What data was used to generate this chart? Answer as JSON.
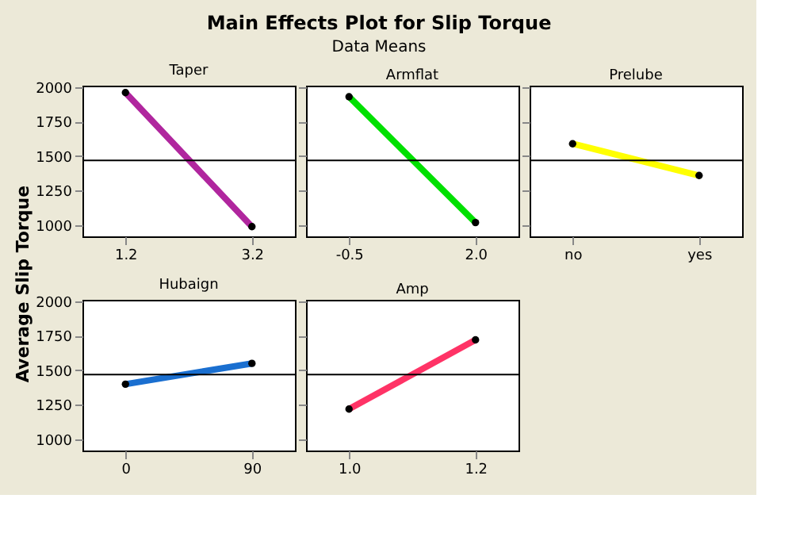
{
  "chart_data": [
    {
      "type": "other",
      "title": "Main Effects Plot for Slip Torque",
      "subtitle": "Data Means",
      "ylabel": "Average Slip Torque"
    },
    {
      "type": "line",
      "title": "Taper",
      "categories": [
        "1.2",
        "3.2"
      ],
      "values": [
        1960,
        990
      ],
      "color": "#b0269e",
      "marker": "circle",
      "ylim": [
        920,
        2010
      ],
      "yticks": [
        1000,
        1250,
        1500,
        1750,
        2000
      ],
      "ref_lines": [
        {
          "axis": "y",
          "value": 1470
        }
      ]
    },
    {
      "type": "line",
      "title": "Armflat",
      "categories": [
        "-0.5",
        "2.0"
      ],
      "values": [
        1930,
        1020
      ],
      "color": "#00e000",
      "marker": "circle",
      "ylim": [
        920,
        2010
      ],
      "yticks": [
        1000,
        1250,
        1500,
        1750,
        2000
      ],
      "ref_lines": [
        {
          "axis": "y",
          "value": 1470
        }
      ],
      "tick_labels": "x"
    },
    {
      "type": "line",
      "title": "Prelube",
      "categories": [
        "no",
        "yes"
      ],
      "values": [
        1590,
        1360
      ],
      "color": "#ffff00",
      "marker": "circle",
      "ylim": [
        920,
        2010
      ],
      "yticks": [
        1000,
        1250,
        1500,
        1750,
        2000
      ],
      "ref_lines": [
        {
          "axis": "y",
          "value": 1470
        }
      ],
      "tick_labels": "x"
    },
    {
      "type": "line",
      "title": "Hubaign",
      "categories": [
        "0",
        "90"
      ],
      "values": [
        1400,
        1550
      ],
      "color": "#1a6fd0",
      "marker": "circle",
      "ylim": [
        920,
        2010
      ],
      "yticks": [
        1000,
        1250,
        1500,
        1750,
        2000
      ],
      "ref_lines": [
        {
          "axis": "y",
          "value": 1470
        }
      ]
    },
    {
      "type": "line",
      "title": "Amp",
      "categories": [
        "1.0",
        "1.2"
      ],
      "values": [
        1220,
        1720
      ],
      "color": "#ff3366",
      "marker": "circle",
      "ylim": [
        920,
        2010
      ],
      "yticks": [
        1000,
        1250,
        1500,
        1750,
        2000
      ],
      "ref_lines": [
        {
          "axis": "y",
          "value": 1470
        }
      ],
      "tick_labels": "x"
    }
  ]
}
